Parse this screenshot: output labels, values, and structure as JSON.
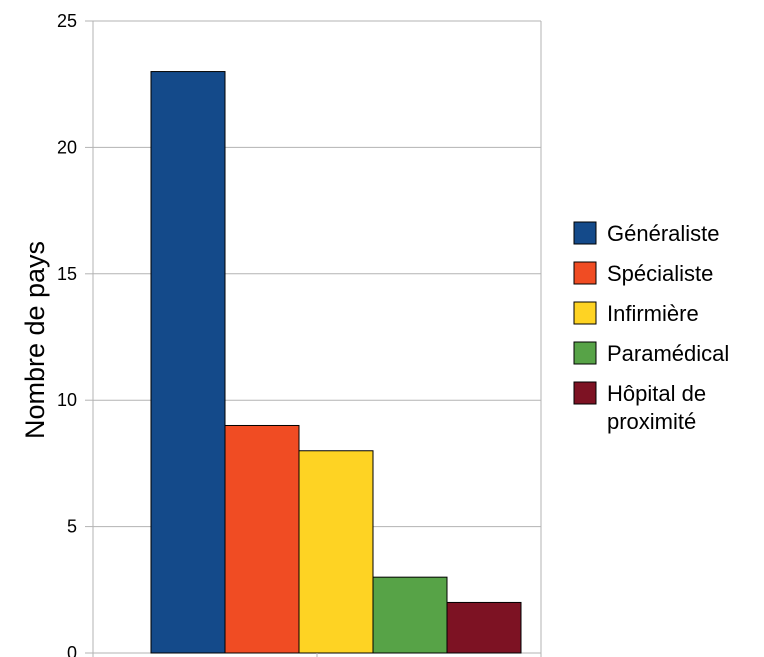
{
  "chart_data": {
    "type": "bar",
    "title": "",
    "xlabel": "",
    "ylabel": "Nombre de pays",
    "ylim": [
      0,
      25
    ],
    "yticks": [
      0,
      5,
      10,
      15,
      20,
      25
    ],
    "grid": true,
    "legend_position": "right",
    "series": [
      {
        "name": "Généraliste",
        "values": [
          23
        ],
        "color": "#144a8a"
      },
      {
        "name": "Spécialiste",
        "values": [
          9
        ],
        "color": "#f04c23"
      },
      {
        "name": "Infirmière",
        "values": [
          8
        ],
        "color": "#fed323"
      },
      {
        "name": "Paramédical",
        "values": [
          3
        ],
        "color": "#57a347"
      },
      {
        "name": "Hôpital de proximité",
        "values": [
          2
        ],
        "color": "#7d1223"
      }
    ]
  }
}
